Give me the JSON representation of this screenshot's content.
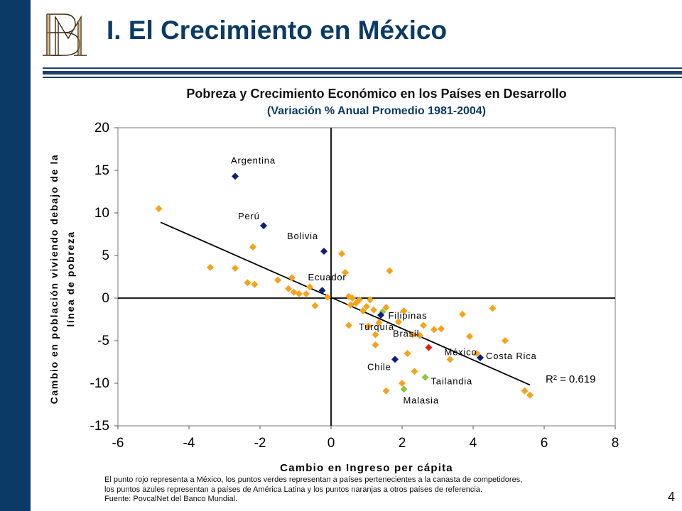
{
  "slide": {
    "title": "I. El Crecimiento en México",
    "page_number": "4",
    "logo_text": "BM"
  },
  "colors": {
    "navy": "#0b3a66",
    "orange": "#f7a21b",
    "blue_points": "#0d1f7a",
    "green_points": "#8cc63e",
    "red_point": "#e02020"
  },
  "chart_data": {
    "type": "scatter",
    "title": "Pobreza y Crecimiento Económico en los Países en Desarrollo",
    "subtitle": "(Variación % Anual Promedio 1981-2004)",
    "xlabel": "Cambio en Ingreso per cápita",
    "ylabel_lines": [
      "Cambio en población viviendo debajo de la",
      "línea de pobreza"
    ],
    "xlim": [
      -6,
      8
    ],
    "ylim": [
      -15,
      20
    ],
    "xticks": [
      "-6",
      "-4",
      "-2",
      "0",
      "2",
      "4",
      "6",
      "8"
    ],
    "yticks": [
      "-15",
      "-10",
      "-5",
      "0",
      "5",
      "10",
      "15",
      "20"
    ],
    "grid": false,
    "trendline": {
      "x": [
        -4.8,
        5.6
      ],
      "y": [
        8.9,
        -10.2
      ],
      "label": "R² = 0.619"
    },
    "labeled_points": [
      {
        "name": "Argentina",
        "x": -2.7,
        "y": 14.3,
        "group": "latam"
      },
      {
        "name": "Perú",
        "x": -1.9,
        "y": 8.5,
        "group": "latam"
      },
      {
        "name": "Bolivia",
        "x": -0.2,
        "y": 5.5,
        "group": "latam"
      },
      {
        "name": "Ecuador",
        "x": -0.25,
        "y": 0.9,
        "group": "latam"
      },
      {
        "name": "Filipinas",
        "x": 1.45,
        "y": -1.6,
        "group": "competitor"
      },
      {
        "name": "Turquía",
        "x": 1.4,
        "y": -2.0,
        "group": "latam"
      },
      {
        "name": "Brasil",
        "x": 1.9,
        "y": -2.8,
        "group": "orange"
      },
      {
        "name": "México",
        "x": 2.75,
        "y": -5.8,
        "group": "mexico"
      },
      {
        "name": "Chile",
        "x": 1.8,
        "y": -7.2,
        "group": "latam"
      },
      {
        "name": "Costa Rica",
        "x": 4.2,
        "y": -7.0,
        "group": "latam"
      },
      {
        "name": "Tailandia",
        "x": 2.65,
        "y": -9.3,
        "group": "competitor"
      },
      {
        "name": "Malasia",
        "x": 2.05,
        "y": -10.7,
        "group": "competitor"
      }
    ],
    "other_points": [
      [
        -4.85,
        10.5
      ],
      [
        -3.4,
        3.6
      ],
      [
        -2.7,
        3.5
      ],
      [
        -2.2,
        6.0
      ],
      [
        -2.35,
        1.8
      ],
      [
        -2.15,
        1.6
      ],
      [
        -1.5,
        2.1
      ],
      [
        -1.2,
        1.1
      ],
      [
        -1.1,
        2.4
      ],
      [
        -1.05,
        0.7
      ],
      [
        -0.9,
        0.5
      ],
      [
        -0.7,
        0.5
      ],
      [
        -0.6,
        1.3
      ],
      [
        -0.45,
        -0.9
      ],
      [
        -0.1,
        0.1
      ],
      [
        0.3,
        5.2
      ],
      [
        0.4,
        3.0
      ],
      [
        0.5,
        0.2
      ],
      [
        0.55,
        -0.8
      ],
      [
        0.6,
        0.0
      ],
      [
        0.7,
        -0.6
      ],
      [
        0.8,
        -0.2
      ],
      [
        0.9,
        -1.5
      ],
      [
        1.0,
        -1.0
      ],
      [
        1.05,
        -3.3
      ],
      [
        1.1,
        -0.2
      ],
      [
        1.2,
        -1.4
      ],
      [
        1.25,
        -4.3
      ],
      [
        1.25,
        -5.5
      ],
      [
        1.35,
        -2.9
      ],
      [
        1.55,
        -1.1
      ],
      [
        1.65,
        3.2
      ],
      [
        2.0,
        -10.0
      ],
      [
        2.05,
        -1.5
      ],
      [
        2.15,
        -6.5
      ],
      [
        2.3,
        -4.3
      ],
      [
        2.35,
        -8.6
      ],
      [
        2.5,
        -4.4
      ],
      [
        2.6,
        -3.2
      ],
      [
        2.9,
        -3.7
      ],
      [
        3.1,
        -3.6
      ],
      [
        3.35,
        -7.2
      ],
      [
        3.7,
        -1.9
      ],
      [
        3.9,
        -4.5
      ],
      [
        4.1,
        -6.5
      ],
      [
        4.55,
        -1.2
      ],
      [
        4.9,
        -5.0
      ],
      [
        5.45,
        -10.9
      ],
      [
        5.6,
        -11.4
      ],
      [
        1.55,
        -10.9
      ],
      [
        0.5,
        -3.2
      ]
    ]
  },
  "footnote": {
    "line1": "El punto rojo representa a México, los puntos verdes representan a países pertenecientes a la canasta de competidores,",
    "line2": "los puntos azules representan a países de América Latina y los puntos naranjas a otros países de referencia.",
    "line3": "Fuente: PovcalNet del Banco Mundial."
  }
}
